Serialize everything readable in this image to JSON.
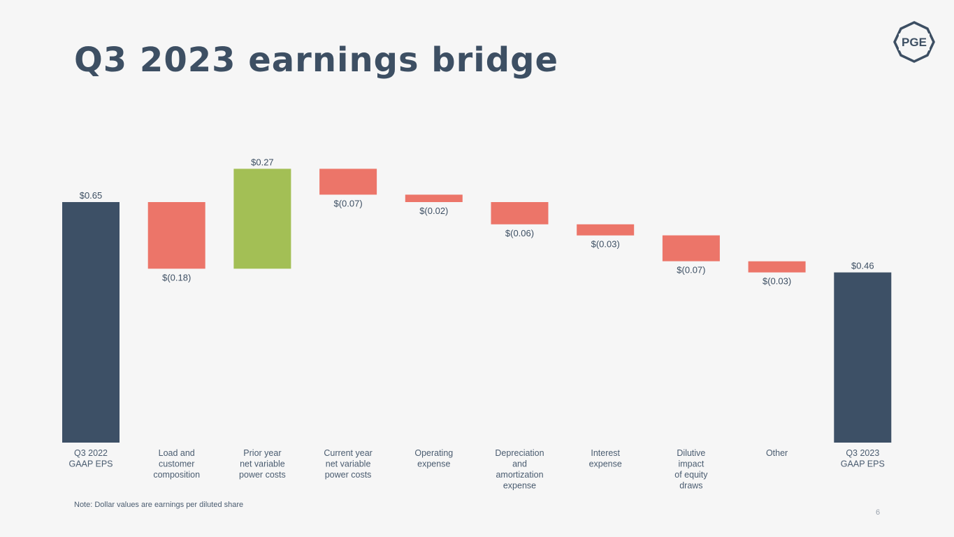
{
  "slide": {
    "title": "Q3 2023 earnings bridge",
    "logo_text": "PGE",
    "note": "Note: Dollar values are earnings per diluted share",
    "page_number": "6"
  },
  "colors": {
    "total": "#3d5066",
    "decrease": "#ec7569",
    "increase": "#a3bf55",
    "label": "#3d4f63",
    "axis_label": "#4a5c70"
  },
  "chart_data": {
    "type": "waterfall",
    "title": "",
    "xlabel": "",
    "ylabel": "",
    "ylim": [
      0,
      0.65
    ],
    "grid": false,
    "legend": "none",
    "categories": [
      [
        "Q3 2022",
        "GAAP EPS"
      ],
      [
        "Load and",
        "customer",
        "composition"
      ],
      [
        "Prior year",
        "net variable",
        "power costs"
      ],
      [
        "Current year",
        "net variable",
        "power costs"
      ],
      [
        "Operating",
        "expense"
      ],
      [
        "Depreciation",
        "and",
        "amortization",
        "expense"
      ],
      [
        "Interest",
        "expense"
      ],
      [
        "Dilutive",
        "impact",
        "of equity",
        "draws"
      ],
      [
        "Other"
      ],
      [
        "Q3 2023",
        "GAAP EPS"
      ]
    ],
    "steps": [
      {
        "kind": "total",
        "value": 0.65,
        "label": "$0.65"
      },
      {
        "kind": "decrease",
        "value": -0.18,
        "label": "$(0.18)"
      },
      {
        "kind": "increase",
        "value": 0.27,
        "label": "$0.27"
      },
      {
        "kind": "decrease",
        "value": -0.07,
        "label": "$(0.07)"
      },
      {
        "kind": "decrease",
        "value": -0.02,
        "label": "$(0.02)"
      },
      {
        "kind": "decrease",
        "value": -0.06,
        "label": "$(0.06)"
      },
      {
        "kind": "decrease",
        "value": -0.03,
        "label": "$(0.03)"
      },
      {
        "kind": "decrease",
        "value": -0.07,
        "label": "$(0.07)"
      },
      {
        "kind": "decrease",
        "value": -0.03,
        "label": "$(0.03)"
      },
      {
        "kind": "total",
        "value": 0.46,
        "label": "$0.46"
      }
    ]
  }
}
